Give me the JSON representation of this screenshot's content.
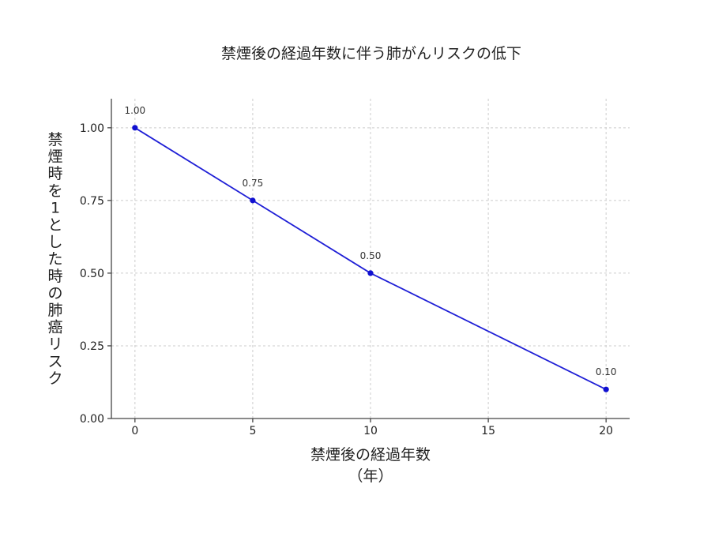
{
  "chart_data": {
    "type": "line",
    "title": "禁煙後の経過年数に伴う肺がんリスクの低下",
    "xlabel_line1": "禁煙後の経過年数",
    "xlabel_line2": "（年）",
    "ylabel_chars": [
      "禁",
      "煙",
      "時",
      "を",
      "1",
      "と",
      "し",
      "た",
      "時",
      "の",
      "肺",
      "癌",
      "リ",
      "ス",
      "ク"
    ],
    "x": [
      0,
      5,
      10,
      20
    ],
    "y": [
      1.0,
      0.75,
      0.5,
      0.1
    ],
    "data_labels": [
      "1.00",
      "0.75",
      "0.50",
      "0.10"
    ],
    "xlim": [
      -1,
      21
    ],
    "ylim": [
      0,
      1.1
    ],
    "x_ticks": [
      0,
      5,
      10,
      15,
      20
    ],
    "x_tick_labels": [
      "0",
      "5",
      "10",
      "15",
      "20"
    ],
    "y_ticks": [
      0,
      0.25,
      0.5,
      0.75,
      1.0
    ],
    "y_tick_labels": [
      "0.00",
      "0.25",
      "0.50",
      "0.75",
      "1.00"
    ],
    "grid": true,
    "line_color": "#1f1fd6",
    "marker_color": "#1010d0"
  }
}
